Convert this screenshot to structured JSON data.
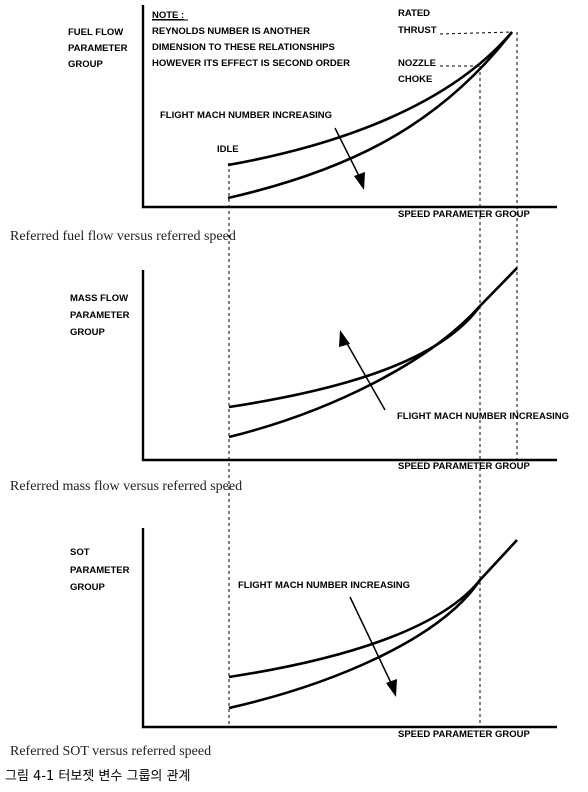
{
  "panel1": {
    "ylabel": [
      "FUEL FLOW",
      "PARAMETER",
      "GROUP"
    ],
    "note_title": "NOTE :",
    "note_lines": [
      "REYNOLDS NUMBER IS ANOTHER",
      "DIMENSION TO THESE RELATIONSHIPS",
      "HOWEVER ITS EFFECT IS SECOND ORDER"
    ],
    "rated": [
      "RATED",
      "THRUST"
    ],
    "nozzle": [
      "NOZZLE",
      "CHOKE"
    ],
    "mach": "FLIGHT MACH NUMBER INCREASING",
    "idle": "IDLE",
    "xlabel": "SPEED PARAMETER GROUP",
    "caption": "Referred fuel flow versus referred speed"
  },
  "panel2": {
    "ylabel": [
      "MASS FLOW",
      "PARAMETER",
      "GROUP"
    ],
    "mach": "FLIGHT MACH NUMBER INCREASING",
    "xlabel": "SPEED PARAMETER GROUP",
    "caption": "Referred mass flow versus referred speed"
  },
  "panel3": {
    "ylabel": [
      "SOT",
      "PARAMETER",
      "GROUP"
    ],
    "mach": "FLIGHT MACH NUMBER INCREASING",
    "xlabel": "SPEED PARAMETER GROUP",
    "caption": "Referred SOT versus referred speed"
  },
  "figure_caption": "그림 4-1 터보젯 변수 그룹의 관계"
}
